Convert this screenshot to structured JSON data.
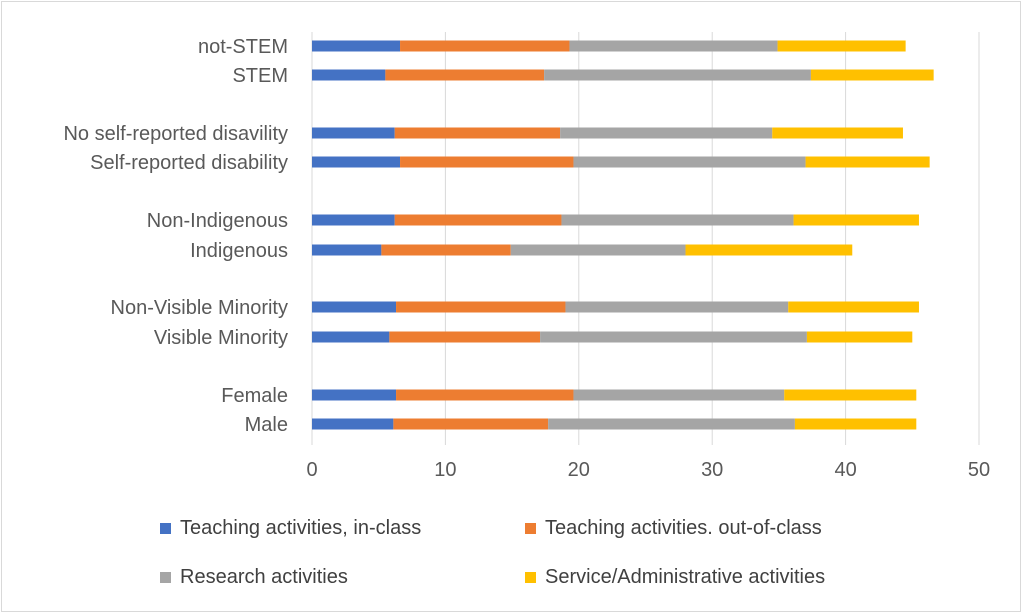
{
  "chart_data": {
    "type": "bar",
    "orientation": "horizontal",
    "stacked": true,
    "title": "",
    "xlabel": "",
    "ylabel": "",
    "xlim": [
      0,
      50
    ],
    "x_ticks": [
      "0",
      "10",
      "20",
      "30",
      "40",
      "50"
    ],
    "grid": true,
    "legend_position": "bottom",
    "categories": [
      "not-STEM",
      "STEM",
      "No self-reported disavility",
      "Self-reported disability",
      "Non-Indigenous",
      "Indigenous",
      "Non-Visible Minority",
      "Visible Minority",
      "Female",
      "Male"
    ],
    "series": [
      {
        "name": "Teaching activities, in-class",
        "color": "#4472c4",
        "values": [
          6.6,
          5.5,
          6.2,
          6.6,
          6.2,
          5.2,
          6.3,
          5.8,
          6.3,
          6.1
        ]
      },
      {
        "name": "Teaching activities. out-of-class",
        "color": "#ed7d31",
        "values": [
          12.7,
          11.9,
          12.4,
          13.0,
          12.5,
          9.7,
          12.7,
          11.3,
          13.3,
          11.6
        ]
      },
      {
        "name": "Research activities",
        "color": "#a5a5a5",
        "values": [
          15.6,
          20.0,
          15.9,
          17.4,
          17.4,
          13.1,
          16.7,
          20.0,
          15.8,
          18.5
        ]
      },
      {
        "name": "Service/Administrative activities",
        "color": "#ffc000",
        "values": [
          9.6,
          9.2,
          9.8,
          9.3,
          9.4,
          12.5,
          9.8,
          7.9,
          9.9,
          9.1
        ]
      }
    ]
  }
}
